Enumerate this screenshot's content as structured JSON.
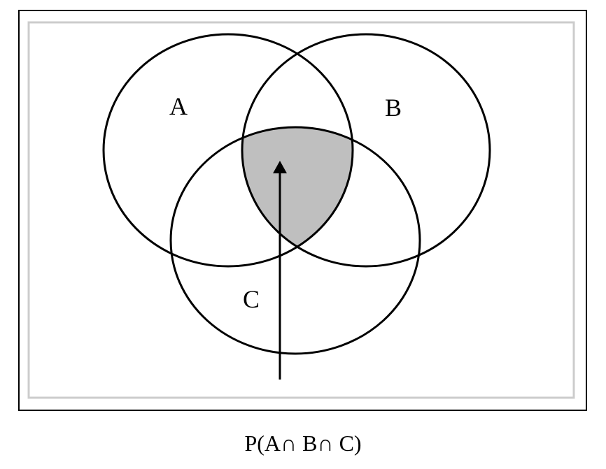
{
  "diagram": {
    "sets": [
      {
        "label": "A"
      },
      {
        "label": "B"
      },
      {
        "label": "C"
      }
    ],
    "shaded_region": "A∩B∩C",
    "colors": {
      "outline": "#000000",
      "inner_frame": "#cccccc",
      "shade": "#bfbfbf",
      "background": "#ffffff"
    }
  },
  "caption": "P(A∩ B∩ C)"
}
